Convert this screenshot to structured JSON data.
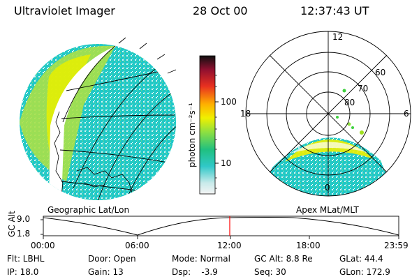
{
  "header": {
    "instrument": "Ultraviolet Imager",
    "date": "28 Oct 00",
    "time": "12:37:43 UT"
  },
  "colorbar": {
    "label": "photon cm⁻²s⁻¹",
    "ticks": [
      "100",
      "10"
    ]
  },
  "polar_plot": {
    "mlt_labels": [
      "12",
      "18",
      "6",
      "0"
    ],
    "lat_labels": [
      "60",
      "70",
      "80"
    ]
  },
  "panel_labels": {
    "left": "Geographic Lat/Lon",
    "right": "Apex MLat/MLT"
  },
  "altitude_plot": {
    "ylabel": "GC Alt",
    "yticks": [
      "9.0",
      "1.8"
    ],
    "xticks": [
      "00:00",
      "06:00",
      "12:00",
      "18:00",
      "23:59"
    ]
  },
  "info": {
    "flt": "Flt: LBHL",
    "door": "Door: Open",
    "mode": "Mode: Normal",
    "gc_alt": "GC Alt: 8.8 Re",
    "glat": "GLat:  44.4",
    "ip": "IP: 18.0",
    "gain": "Gain: 13",
    "dsp": "Dsp:    -3.9",
    "seq": "Seq: 30",
    "glon": "GLon: 172.9"
  },
  "colors": {
    "aurora_low": "#18c8c0",
    "aurora_mid": "#a0e020",
    "aurora_high": "#f0f000",
    "marker": "#ff0000"
  }
}
